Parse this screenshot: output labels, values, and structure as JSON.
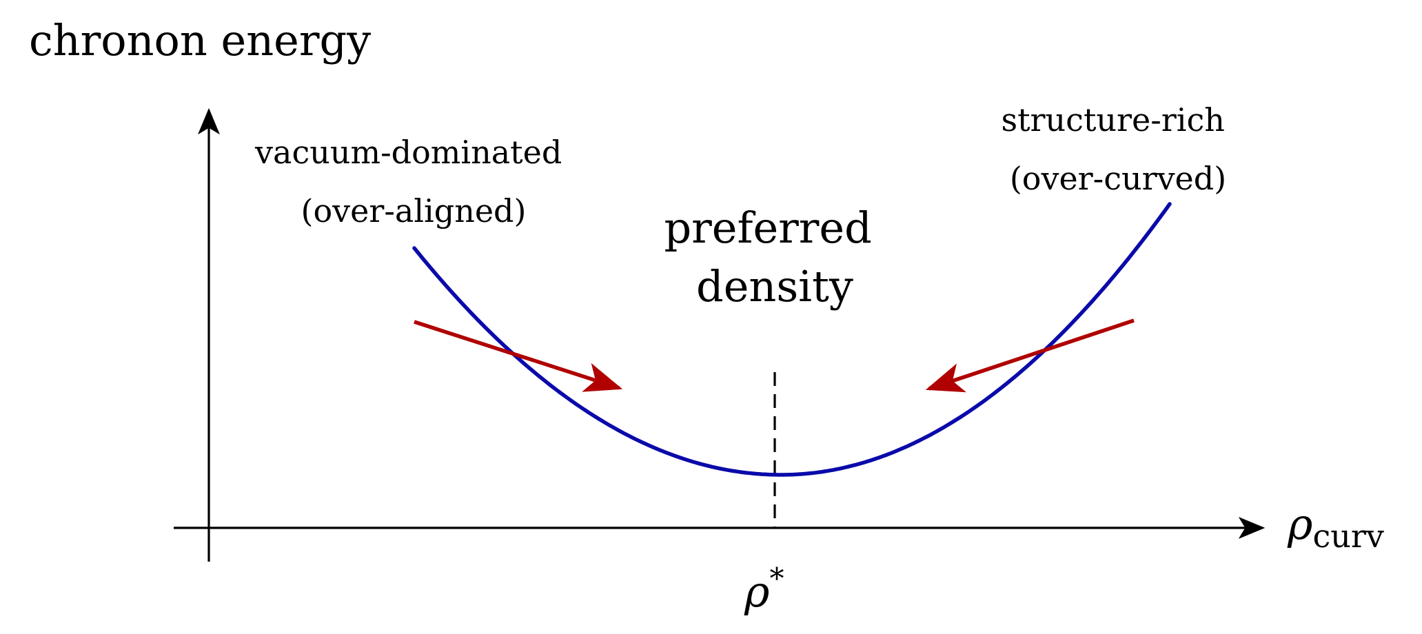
{
  "y_axis_label": "chronon energy",
  "x_axis_label": {
    "base": "ρ",
    "subscript": "curv"
  },
  "minimum_tick_label": {
    "base": "ρ",
    "superscript": "*"
  },
  "center_label": {
    "line1": "preferred",
    "line2": "density"
  },
  "left_region_label": {
    "line1": "vacuum-dominated",
    "line2": "(over-aligned)"
  },
  "right_region_label": {
    "line1": "structure-rich",
    "line2": "(over-curved)"
  },
  "colors": {
    "curve": "#0a0aaa",
    "arrows": "#b00000",
    "axes": "#000000"
  }
}
